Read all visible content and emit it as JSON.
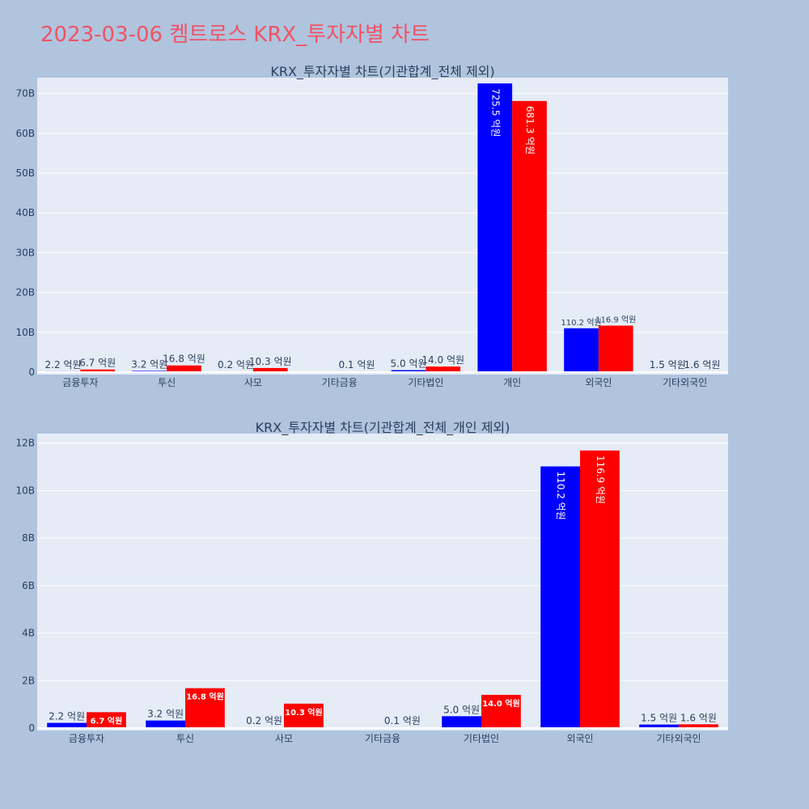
{
  "title": "2023-03-06 켐트로스 KRX_투자자별 차트",
  "colors": {
    "bg": "#b0c4de",
    "plot_bg": "#e5ecf6",
    "buy": "#0000ff",
    "sell": "#ff0000",
    "title": "#ef5366",
    "text": "#2a3f5f"
  },
  "chart_data": [
    {
      "type": "bar",
      "title": "KRX_투자자별 차트(기관합계_전체 제외)",
      "categories": [
        "금융투자",
        "투신",
        "사모",
        "기타금융",
        "기타법인",
        "개인",
        "외국인",
        "기타외국인"
      ],
      "series": [
        {
          "values": [
            0.22,
            0.32,
            0.02,
            0.0,
            0.5,
            72.55,
            11.02,
            0.15
          ],
          "labels": [
            "2.2 억원",
            "3.2 억원",
            "0.2 억원",
            "",
            "5.0 억원",
            "725.5 억원",
            "110.2 억원",
            "1.5 억원"
          ]
        },
        {
          "values": [
            0.67,
            1.68,
            1.03,
            0.01,
            1.4,
            68.13,
            11.69,
            0.16
          ],
          "labels": [
            "6.7 억원",
            "16.8 억원",
            "10.3 억원",
            "0.1 억원",
            "14.0 억원",
            "681.3 억원",
            "116.9 억원",
            "1.6 억원"
          ]
        }
      ],
      "ylim": [
        0,
        74
      ],
      "yticks": [
        0,
        10,
        20,
        30,
        40,
        50,
        60,
        70
      ],
      "ytick_labels": [
        "0",
        "10B",
        "20B",
        "30B",
        "40B",
        "50B",
        "60B",
        "70B"
      ],
      "grid": true
    },
    {
      "type": "bar",
      "title": "KRX_투자자별 차트(기관합계_전체_개인 제외)",
      "categories": [
        "금융투자",
        "투신",
        "사모",
        "기타금융",
        "기타법인",
        "외국인",
        "기타외국인"
      ],
      "series": [
        {
          "values": [
            0.22,
            0.32,
            0.02,
            0.0,
            0.5,
            11.02,
            0.15
          ],
          "labels": [
            "2.2 억원",
            "3.2 억원",
            "0.2 억원",
            "",
            "5.0 억원",
            "110.2 억원",
            "1.5 억원"
          ]
        },
        {
          "values": [
            0.67,
            1.68,
            1.03,
            0.01,
            1.4,
            11.69,
            0.16
          ],
          "labels": [
            "6.7 억원",
            "16.8 억원",
            "10.3 억원",
            "0.1 억원",
            "14.0 억원",
            "116.9 억원",
            "1.6 억원"
          ]
        }
      ],
      "ylim": [
        0,
        12.4
      ],
      "yticks": [
        0,
        2,
        4,
        6,
        8,
        10,
        12
      ],
      "ytick_labels": [
        "0",
        "2B",
        "4B",
        "6B",
        "8B",
        "10B",
        "12B"
      ],
      "grid": true
    }
  ]
}
